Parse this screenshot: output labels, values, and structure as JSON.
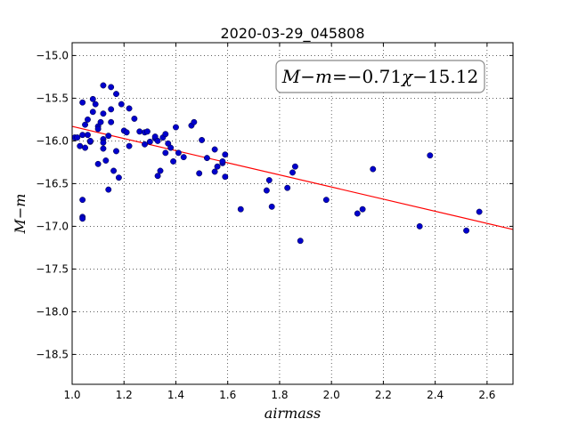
{
  "chart_data": {
    "type": "scatter",
    "title": "2020-03-29_045808",
    "xlabel": "airmass",
    "ylabel": "M−m",
    "xlim": [
      1.0,
      2.7
    ],
    "ylim": [
      -18.85,
      -14.85
    ],
    "y_inverted": true,
    "grid": true,
    "x_ticks": [
      1.0,
      1.2,
      1.4,
      1.6,
      1.8,
      2.0,
      2.2,
      2.4,
      2.6
    ],
    "x_tick_labels": [
      "1.0",
      "1.2",
      "1.4",
      "1.6",
      "1.8",
      "2.0",
      "2.2",
      "2.4",
      "2.6"
    ],
    "y_ticks": [
      -15.0,
      -15.5,
      -16.0,
      -16.5,
      -17.0,
      -17.5,
      -18.0,
      -18.5
    ],
    "y_tick_labels": [
      "−15.0",
      "−15.5",
      "−16.0",
      "−16.5",
      "−17.0",
      "−17.5",
      "−18.0",
      "−18.5"
    ],
    "annotation": {
      "text": "M−m=−0.71χ−15.12",
      "lhs_M": "M",
      "minus1": "−",
      "lhs_m": "m",
      "equals": "=",
      "coef": "−0.71",
      "chi": "χ",
      "intercept": "−15.12",
      "position": "top-right"
    },
    "fit_line": {
      "slope": -0.71,
      "intercept": -15.12,
      "x_range": [
        1.0,
        2.7
      ],
      "color": "#ff0000"
    },
    "marker_color": "#0000cc",
    "series": [
      {
        "points": [
          [
            1.01,
            -15.96
          ],
          [
            1.02,
            -15.96
          ],
          [
            1.03,
            -16.06
          ],
          [
            1.04,
            -15.55
          ],
          [
            1.04,
            -15.93
          ],
          [
            1.04,
            -16.69
          ],
          [
            1.04,
            -16.89
          ],
          [
            1.04,
            -16.91
          ],
          [
            1.05,
            -16.08
          ],
          [
            1.05,
            -15.81
          ],
          [
            1.06,
            -15.93
          ],
          [
            1.06,
            -15.75
          ],
          [
            1.07,
            -16.01
          ],
          [
            1.07,
            -16.0
          ],
          [
            1.08,
            -15.51
          ],
          [
            1.08,
            -15.66
          ],
          [
            1.09,
            -15.57
          ],
          [
            1.1,
            -15.83
          ],
          [
            1.1,
            -15.86
          ],
          [
            1.1,
            -16.27
          ],
          [
            1.11,
            -15.78
          ],
          [
            1.12,
            -15.35
          ],
          [
            1.12,
            -15.98
          ],
          [
            1.12,
            -16.02
          ],
          [
            1.12,
            -15.68
          ],
          [
            1.12,
            -16.09
          ],
          [
            1.13,
            -16.23
          ],
          [
            1.14,
            -16.57
          ],
          [
            1.14,
            -15.94
          ],
          [
            1.15,
            -15.37
          ],
          [
            1.15,
            -15.63
          ],
          [
            1.15,
            -15.78
          ],
          [
            1.16,
            -16.35
          ],
          [
            1.17,
            -15.45
          ],
          [
            1.17,
            -16.12
          ],
          [
            1.18,
            -16.43
          ],
          [
            1.19,
            -15.57
          ],
          [
            1.2,
            -15.88
          ],
          [
            1.21,
            -15.9
          ],
          [
            1.22,
            -15.62
          ],
          [
            1.22,
            -16.06
          ],
          [
            1.24,
            -15.74
          ],
          [
            1.26,
            -15.89
          ],
          [
            1.28,
            -16.04
          ],
          [
            1.28,
            -15.9
          ],
          [
            1.29,
            -15.89
          ],
          [
            1.3,
            -16.01
          ],
          [
            1.32,
            -15.97
          ],
          [
            1.32,
            -15.95
          ],
          [
            1.33,
            -16.0
          ],
          [
            1.33,
            -16.41
          ],
          [
            1.34,
            -16.35
          ],
          [
            1.35,
            -15.96
          ],
          [
            1.36,
            -15.92
          ],
          [
            1.36,
            -16.14
          ],
          [
            1.37,
            -16.03
          ],
          [
            1.38,
            -16.08
          ],
          [
            1.39,
            -16.24
          ],
          [
            1.4,
            -15.84
          ],
          [
            1.41,
            -16.14
          ],
          [
            1.43,
            -16.19
          ],
          [
            1.46,
            -15.82
          ],
          [
            1.47,
            -15.78
          ],
          [
            1.49,
            -16.38
          ],
          [
            1.5,
            -15.99
          ],
          [
            1.52,
            -16.2
          ],
          [
            1.55,
            -16.36
          ],
          [
            1.55,
            -16.1
          ],
          [
            1.56,
            -16.3
          ],
          [
            1.58,
            -16.26
          ],
          [
            1.58,
            -16.24
          ],
          [
            1.59,
            -16.42
          ],
          [
            1.59,
            -16.16
          ],
          [
            1.65,
            -16.8
          ],
          [
            1.75,
            -16.58
          ],
          [
            1.76,
            -16.46
          ],
          [
            1.77,
            -16.77
          ],
          [
            1.83,
            -16.55
          ],
          [
            1.85,
            -16.37
          ],
          [
            1.86,
            -16.3
          ],
          [
            1.88,
            -17.17
          ],
          [
            1.98,
            -16.69
          ],
          [
            2.1,
            -16.85
          ],
          [
            2.12,
            -16.8
          ],
          [
            2.16,
            -16.33
          ],
          [
            2.34,
            -17.0
          ],
          [
            2.38,
            -16.17
          ],
          [
            2.52,
            -17.05
          ],
          [
            2.57,
            -16.83
          ]
        ]
      }
    ]
  }
}
